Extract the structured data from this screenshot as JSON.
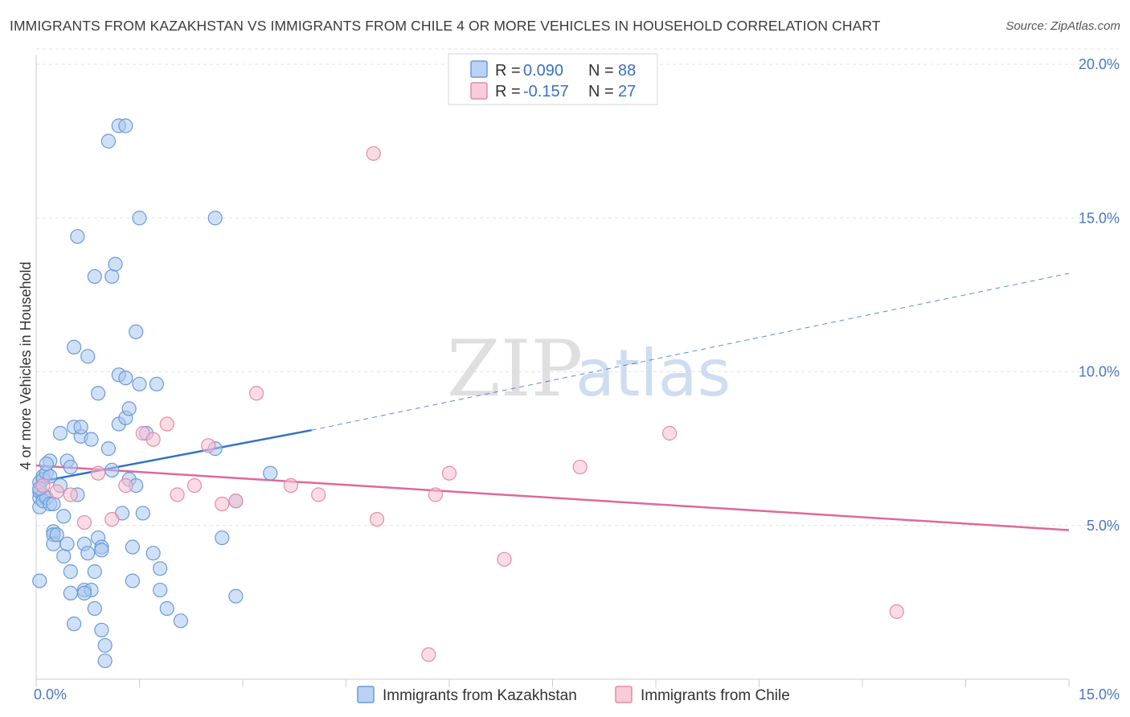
{
  "title": "IMMIGRANTS FROM KAZAKHSTAN VS IMMIGRANTS FROM CHILE 4 OR MORE VEHICLES IN HOUSEHOLD CORRELATION CHART",
  "source": "Source: ZipAtlas.com",
  "watermark": {
    "zip": "ZIP",
    "atlas": "atlas"
  },
  "legend_top": [
    {
      "r_label": "R = ",
      "r_value": "0.090",
      "n_label": "N = ",
      "n_value": "88",
      "color": "#a9c8f0",
      "stroke": "#6a9ad8"
    },
    {
      "r_label": "R = ",
      "r_value": "-0.157",
      "n_label": "N = ",
      "n_value": "27",
      "color": "#f7bfd0",
      "stroke": "#e58aa8"
    }
  ],
  "chart_data": {
    "type": "scatter",
    "title": "IMMIGRANTS FROM KAZAKHSTAN VS IMMIGRANTS FROM CHILE 4 OR MORE VEHICLES IN HOUSEHOLD CORRELATION CHART",
    "xlabel": "",
    "ylabel": "4 or more Vehicles in Household",
    "xlim": [
      0,
      15
    ],
    "ylim": [
      0,
      20
    ],
    "x_tick_labels": [
      "0.0%",
      "15.0%"
    ],
    "y_ticks": [
      5,
      10,
      15,
      20
    ],
    "y_tick_labels": [
      "5.0%",
      "10.0%",
      "15.0%",
      "20.0%"
    ],
    "grid": true,
    "legend_position": "bottom",
    "series": [
      {
        "name": "Immigrants from Kazakhstan",
        "color": "#a9c8f0",
        "stroke": "#6a9ad8",
        "trend": {
          "x": [
            0.0,
            4.0
          ],
          "y": [
            6.4,
            8.1
          ],
          "color": "#3370c9"
        },
        "trend_extension": {
          "x": [
            4.0,
            15.0
          ],
          "y": [
            8.1,
            13.2
          ]
        },
        "points": [
          [
            0.05,
            5.9
          ],
          [
            0.05,
            6.4
          ],
          [
            0.05,
            6.1
          ],
          [
            0.05,
            5.6
          ],
          [
            0.1,
            6.6
          ],
          [
            0.1,
            6.5
          ],
          [
            0.1,
            6.0
          ],
          [
            0.1,
            5.8
          ],
          [
            0.15,
            6.7
          ],
          [
            0.15,
            5.9
          ],
          [
            0.2,
            7.1
          ],
          [
            0.2,
            6.6
          ],
          [
            0.2,
            5.7
          ],
          [
            0.25,
            4.8
          ],
          [
            0.25,
            4.7
          ],
          [
            0.25,
            4.4
          ],
          [
            0.05,
            3.2
          ],
          [
            0.35,
            6.3
          ],
          [
            0.35,
            8.0
          ],
          [
            0.4,
            5.3
          ],
          [
            0.4,
            4.0
          ],
          [
            0.45,
            7.1
          ],
          [
            0.45,
            4.4
          ],
          [
            0.5,
            6.9
          ],
          [
            0.5,
            3.5
          ],
          [
            0.5,
            2.8
          ],
          [
            0.55,
            8.2
          ],
          [
            0.55,
            10.8
          ],
          [
            0.6,
            6.0
          ],
          [
            0.65,
            7.9
          ],
          [
            0.65,
            8.2
          ],
          [
            0.7,
            4.4
          ],
          [
            0.7,
            2.9
          ],
          [
            0.75,
            10.5
          ],
          [
            0.75,
            4.1
          ],
          [
            0.8,
            7.8
          ],
          [
            0.8,
            2.9
          ],
          [
            0.85,
            3.5
          ],
          [
            0.85,
            2.3
          ],
          [
            0.9,
            9.3
          ],
          [
            0.9,
            4.6
          ],
          [
            0.95,
            4.3
          ],
          [
            0.95,
            1.6
          ],
          [
            1.0,
            0.6
          ],
          [
            1.0,
            1.1
          ],
          [
            1.05,
            17.5
          ],
          [
            1.1,
            13.1
          ],
          [
            1.05,
            7.5
          ],
          [
            1.1,
            6.8
          ],
          [
            1.15,
            13.5
          ],
          [
            1.2,
            8.3
          ],
          [
            1.2,
            9.9
          ],
          [
            1.25,
            5.4
          ],
          [
            1.3,
            8.5
          ],
          [
            1.3,
            9.8
          ],
          [
            1.35,
            6.5
          ],
          [
            1.35,
            8.8
          ],
          [
            1.4,
            3.2
          ],
          [
            1.4,
            4.3
          ],
          [
            1.45,
            6.3
          ],
          [
            1.45,
            11.3
          ],
          [
            1.5,
            15.0
          ],
          [
            1.5,
            9.6
          ],
          [
            1.55,
            5.4
          ],
          [
            1.6,
            8.0
          ],
          [
            1.7,
            4.1
          ],
          [
            1.75,
            9.6
          ],
          [
            1.8,
            3.6
          ],
          [
            1.8,
            2.9
          ],
          [
            1.9,
            2.3
          ],
          [
            2.1,
            1.9
          ],
          [
            2.6,
            7.5
          ],
          [
            2.6,
            15.0
          ],
          [
            2.7,
            4.6
          ],
          [
            2.9,
            5.8
          ],
          [
            2.9,
            2.7
          ],
          [
            3.4,
            6.7
          ],
          [
            1.2,
            18.0
          ],
          [
            1.3,
            18.0
          ],
          [
            0.6,
            14.4
          ],
          [
            0.85,
            13.1
          ],
          [
            0.15,
            7.0
          ],
          [
            0.05,
            6.2
          ],
          [
            0.25,
            5.7
          ],
          [
            0.3,
            4.7
          ],
          [
            0.55,
            1.8
          ],
          [
            0.7,
            2.8
          ],
          [
            0.95,
            4.2
          ]
        ]
      },
      {
        "name": "Immigrants from Chile",
        "color": "#f7bfd0",
        "stroke": "#e58aa8",
        "trend": {
          "x": [
            0.0,
            15.0
          ],
          "y": [
            6.95,
            4.85
          ],
          "color": "#e0689a"
        },
        "points": [
          [
            0.1,
            6.3
          ],
          [
            0.3,
            6.1
          ],
          [
            0.5,
            6.0
          ],
          [
            0.7,
            5.1
          ],
          [
            0.9,
            6.7
          ],
          [
            1.1,
            5.2
          ],
          [
            1.3,
            6.3
          ],
          [
            1.55,
            8.0
          ],
          [
            1.7,
            7.8
          ],
          [
            1.9,
            8.3
          ],
          [
            2.05,
            6.0
          ],
          [
            2.3,
            6.3
          ],
          [
            2.5,
            7.6
          ],
          [
            2.7,
            5.7
          ],
          [
            2.9,
            5.8
          ],
          [
            3.2,
            9.3
          ],
          [
            3.7,
            6.3
          ],
          [
            4.1,
            6.0
          ],
          [
            4.9,
            17.1
          ],
          [
            4.95,
            5.2
          ],
          [
            5.7,
            0.8
          ],
          [
            5.8,
            6.0
          ],
          [
            6.0,
            6.7
          ],
          [
            6.8,
            3.9
          ],
          [
            7.9,
            6.9
          ],
          [
            9.2,
            8.0
          ],
          [
            12.5,
            2.2
          ]
        ]
      }
    ]
  }
}
